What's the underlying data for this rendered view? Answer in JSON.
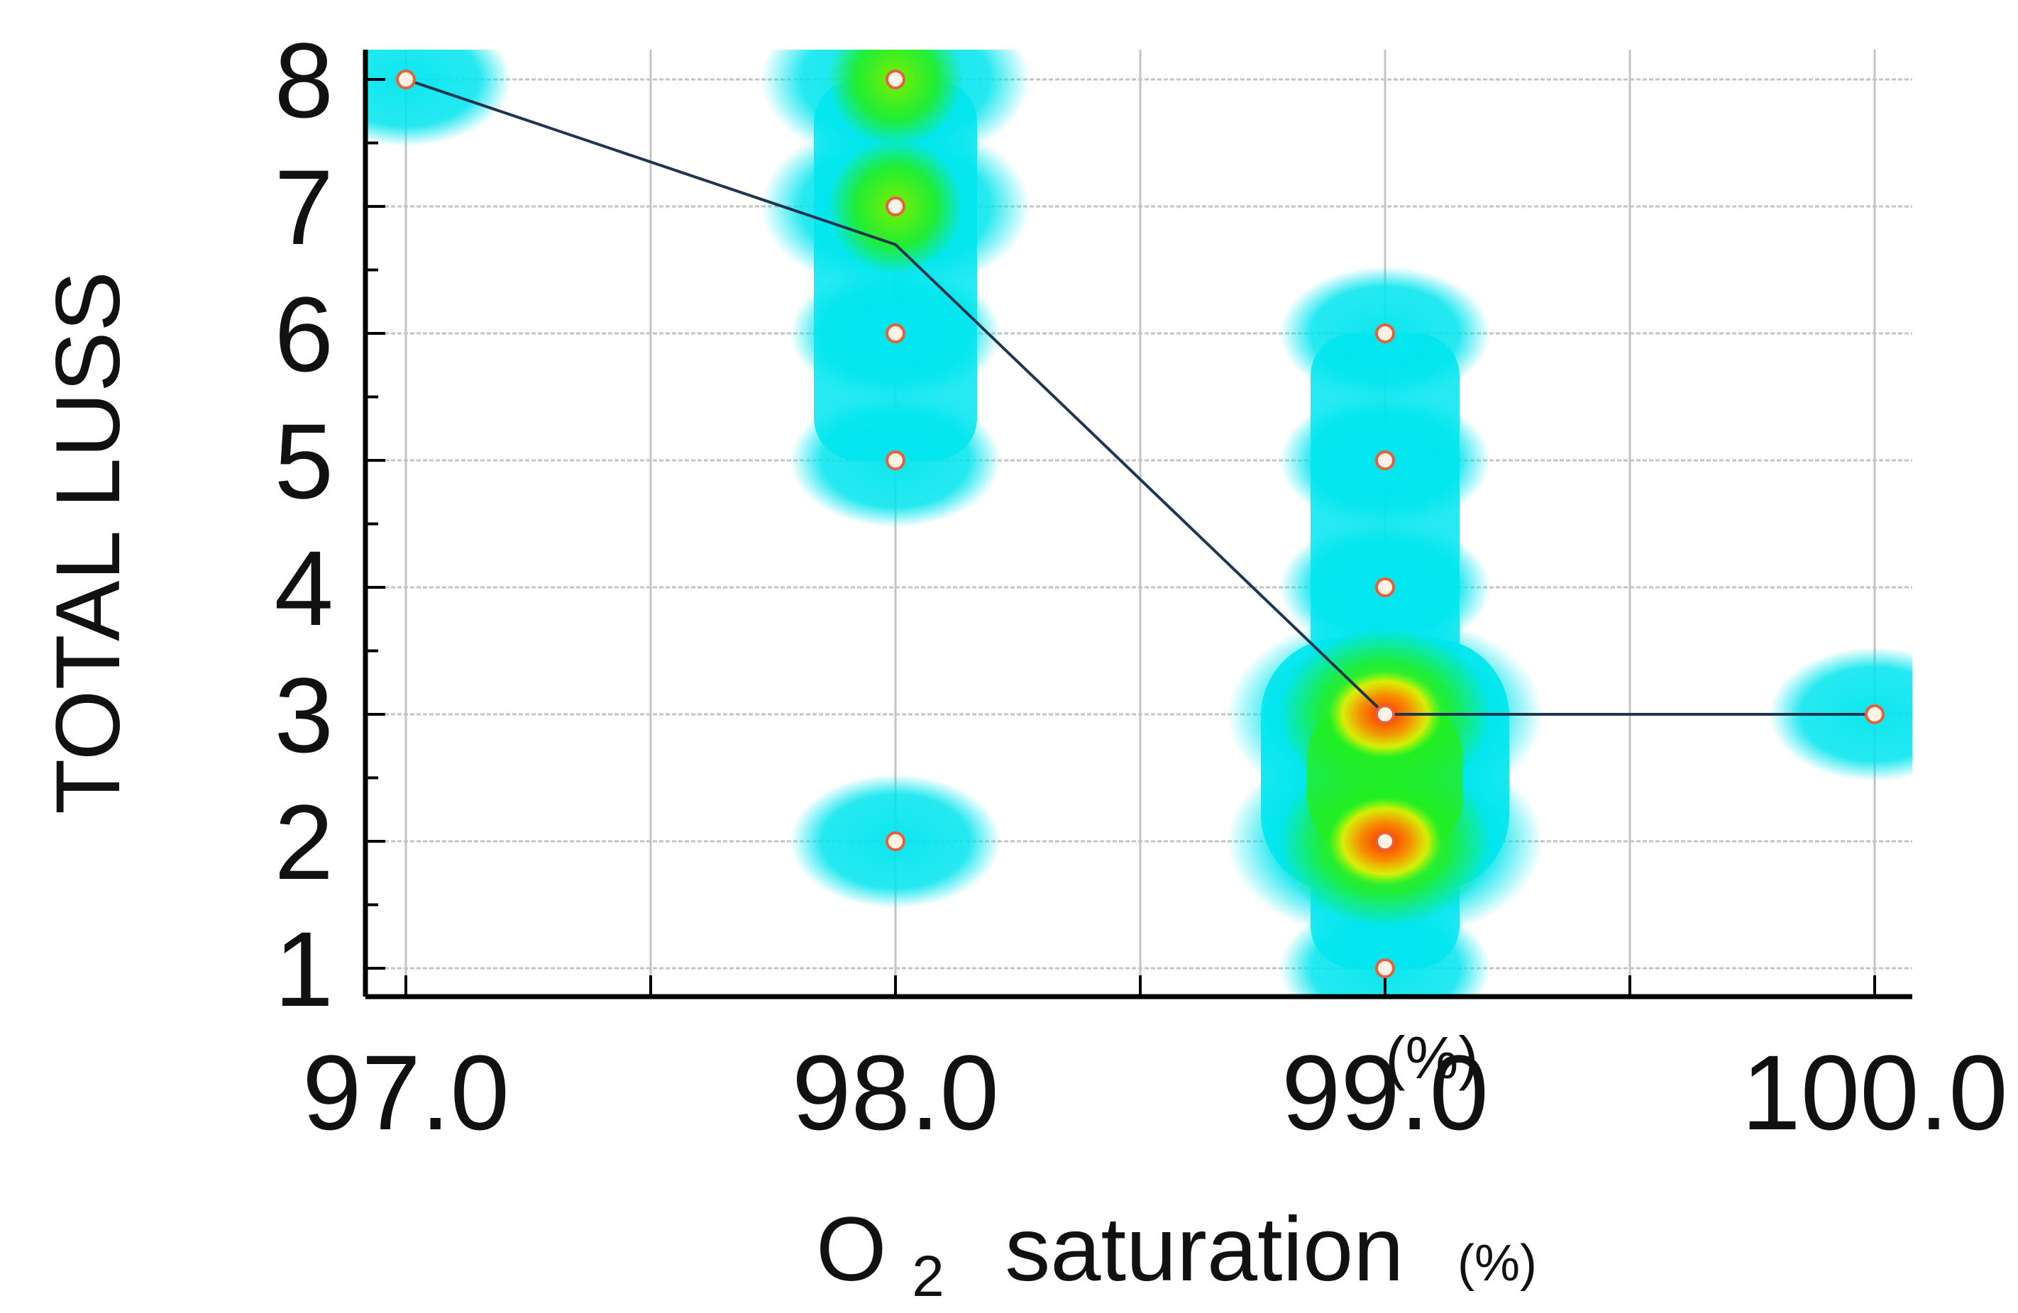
{
  "chart_data": {
    "type": "scatter",
    "title": "",
    "xlabel": "O2 saturation",
    "xlabel_main": "O",
    "xlabel_sub": "2",
    "xlabel_rest": "saturation",
    "xlabel_unit": "(%)",
    "ylabel": "TOTAL LUSS",
    "stray_label": "(%)",
    "xlim": [
      97.0,
      100.0
    ],
    "ylim": [
      0.75,
      8.25
    ],
    "x_ticks": [
      97.0,
      98.0,
      99.0,
      100.0
    ],
    "x_tick_labels": [
      "97.0",
      "98.0",
      "99.0",
      "100.0"
    ],
    "y_ticks": [
      1,
      2,
      3,
      4,
      5,
      6,
      7,
      8
    ],
    "y_tick_labels": [
      "1",
      "2",
      "3",
      "4",
      "5",
      "6",
      "7",
      "8"
    ],
    "grid": true,
    "points": [
      {
        "x": 97.0,
        "y": 8,
        "density": 1
      },
      {
        "x": 98.0,
        "y": 8,
        "density": 3
      },
      {
        "x": 98.0,
        "y": 7,
        "density": 3
      },
      {
        "x": 98.0,
        "y": 6,
        "density": 1
      },
      {
        "x": 98.0,
        "y": 5,
        "density": 1
      },
      {
        "x": 98.0,
        "y": 2,
        "density": 1
      },
      {
        "x": 99.0,
        "y": 6,
        "density": 1
      },
      {
        "x": 99.0,
        "y": 5,
        "density": 1
      },
      {
        "x": 99.0,
        "y": 4,
        "density": 1
      },
      {
        "x": 99.0,
        "y": 3,
        "density": 6
      },
      {
        "x": 99.0,
        "y": 2,
        "density": 6
      },
      {
        "x": 99.0,
        "y": 1,
        "density": 1
      },
      {
        "x": 100.0,
        "y": 3,
        "density": 1
      }
    ],
    "trend_line": {
      "x": [
        97.0,
        98.0,
        99.0,
        100.0
      ],
      "y": [
        8.0,
        6.7,
        3.0,
        3.0
      ],
      "color": "#1f3550"
    },
    "colors": {
      "low": "#00e5ee",
      "mid": "#22ee22",
      "high": "#ff6a00",
      "point_fill": "#fff3e6",
      "point_stroke": "#e8603a",
      "grid": "#c4c4c4",
      "axis": "#000000"
    }
  }
}
